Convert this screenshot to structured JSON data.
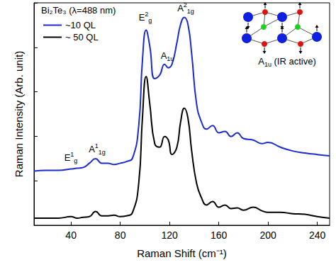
{
  "chart_data": {
    "type": "line",
    "legend_title": "Bi₂Te₃ (λ=488 nm)",
    "xlabel": "Raman Shift (cm⁻¹)",
    "ylabel": "Raman Intensity (Arb. unit)",
    "x": [
      10,
      20,
      30,
      40,
      45,
      50,
      55,
      60,
      65,
      70,
      75,
      80,
      85,
      90,
      95,
      98,
      101,
      104,
      108,
      112,
      116,
      119,
      122,
      126,
      129,
      132,
      135,
      138,
      142,
      146,
      150,
      155,
      160,
      165,
      170,
      175,
      180,
      188,
      195,
      200,
      210,
      220,
      230,
      240,
      250
    ],
    "series": [
      {
        "name": "~10 QL",
        "color": "#1c2bd0",
        "values": [
          24.4,
          24.7,
          24.7,
          25.3,
          25.6,
          26.0,
          27.9,
          29.9,
          27.9,
          27.9,
          27.3,
          27.9,
          28.6,
          30.2,
          44.8,
          74.0,
          87.7,
          80.5,
          65.9,
          67.5,
          72.4,
          70.8,
          72.4,
          82.1,
          90.3,
          93.5,
          90.3,
          77.0,
          54.5,
          46.4,
          43.2,
          44.8,
          41.6,
          42.2,
          39.9,
          41.6,
          39.0,
          38.3,
          36.7,
          37.3,
          35.1,
          33.4,
          32.5,
          31.8,
          31.2
        ]
      },
      {
        "name": "~ 50 QL",
        "color": "#000000",
        "values": [
          3.2,
          3.2,
          3.2,
          3.9,
          3.2,
          3.6,
          3.9,
          6.2,
          4.2,
          4.2,
          4.5,
          3.9,
          4.2,
          5.8,
          18.8,
          48.1,
          66.9,
          54.5,
          36.7,
          35.1,
          39.9,
          38.3,
          31.8,
          35.1,
          46.4,
          52.6,
          48.1,
          33.4,
          18.8,
          12.3,
          9.1,
          10.7,
          8.1,
          9.1,
          7.5,
          7.8,
          6.8,
          8.1,
          6.5,
          5.8,
          5.8,
          5.2,
          4.9,
          3.9,
          3.2
        ]
      }
    ],
    "xlim": [
      10,
      250
    ],
    "xticks": [
      40,
      80,
      120,
      160,
      200,
      240
    ],
    "ylim": [
      0,
      100
    ],
    "yticks": [
      0,
      20,
      40,
      60,
      80,
      100
    ],
    "tick_labels": "x",
    "legend": "upper left",
    "annotations": [
      {
        "text": "E",
        "sub": "g",
        "sup": "1"
      },
      {
        "text": "A",
        "sub": "1g",
        "sup": "1"
      },
      {
        "text": "E",
        "sub": "g",
        "sup": "2"
      },
      {
        "text": "A",
        "sub": "1u"
      },
      {
        "text": "A",
        "sub": "1g",
        "sup": "2"
      }
    ],
    "inset": {
      "label": {
        "text": "A",
        "sub": "1u",
        "suffix": " (IR active)"
      }
    }
  }
}
